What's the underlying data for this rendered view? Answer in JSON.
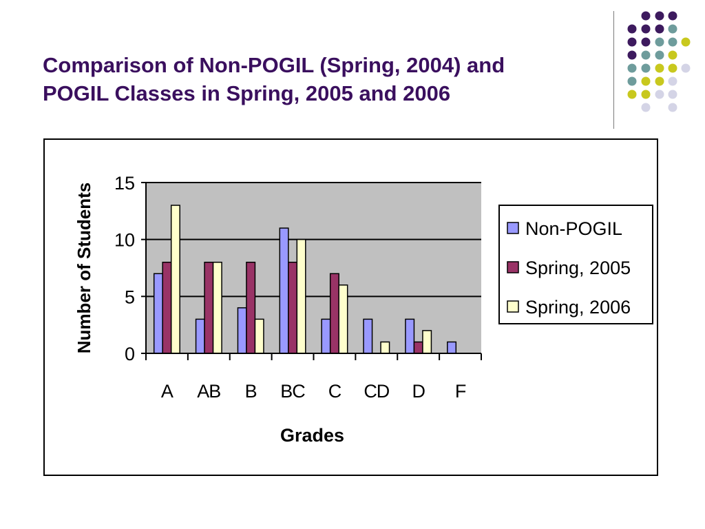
{
  "slide": {
    "title_lines": [
      "Comparison of Non-POGIL (Spring, 2004) and",
      "POGIL Classes in Spring, 2005 and 2006"
    ]
  },
  "decoration": {
    "dot_colors": {
      "purple": "#3d1a5e",
      "teal": "#6e9c9c",
      "lime": "#c8c81e",
      "lavender": "#d4d4e6"
    }
  },
  "chart_data": {
    "type": "bar",
    "title": "",
    "xlabel": "Grades",
    "ylabel": "Number of Students",
    "categories": [
      "A",
      "AB",
      "B",
      "BC",
      "C",
      "CD",
      "D",
      "F"
    ],
    "series": [
      {
        "name": "Non-POGIL",
        "color": "#9999ff",
        "values": [
          7,
          3,
          4,
          11,
          3,
          3,
          3,
          1
        ]
      },
      {
        "name": "Spring, 2005",
        "color": "#993366",
        "values": [
          8,
          8,
          8,
          8,
          7,
          0,
          1,
          0
        ]
      },
      {
        "name": "Spring, 2006",
        "color": "#ffffcc",
        "values": [
          13,
          8,
          3,
          10,
          6,
          1,
          2,
          0
        ]
      }
    ],
    "yticks": [
      "0",
      "5",
      "10",
      "15"
    ],
    "ylim": [
      0,
      15
    ],
    "grid": true,
    "plot_background": "#c0c0c0",
    "legend_position": "right"
  }
}
